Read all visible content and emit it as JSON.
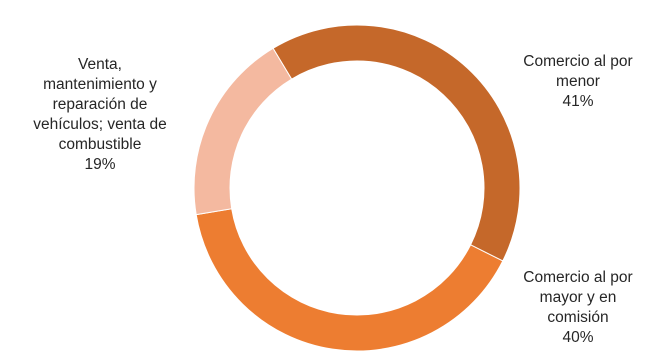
{
  "chart_data": {
    "type": "pie",
    "subtype": "donut",
    "title": "",
    "slices": [
      {
        "label_lines": [
          "Comercio al por",
          "menor"
        ],
        "value": 41,
        "value_label": "41%",
        "color": "#C5682A"
      },
      {
        "label_lines": [
          "Comercio al por",
          "mayor y en",
          "comisión"
        ],
        "value": 40,
        "value_label": "40%",
        "color": "#ED7D31"
      },
      {
        "label_lines": [
          "Venta,",
          "mantenimiento y",
          "reparación de",
          "vehículos; venta de",
          "combustible"
        ],
        "value": 19,
        "value_label": "19%",
        "color": "#F4B9A0"
      }
    ],
    "legend": "none"
  }
}
